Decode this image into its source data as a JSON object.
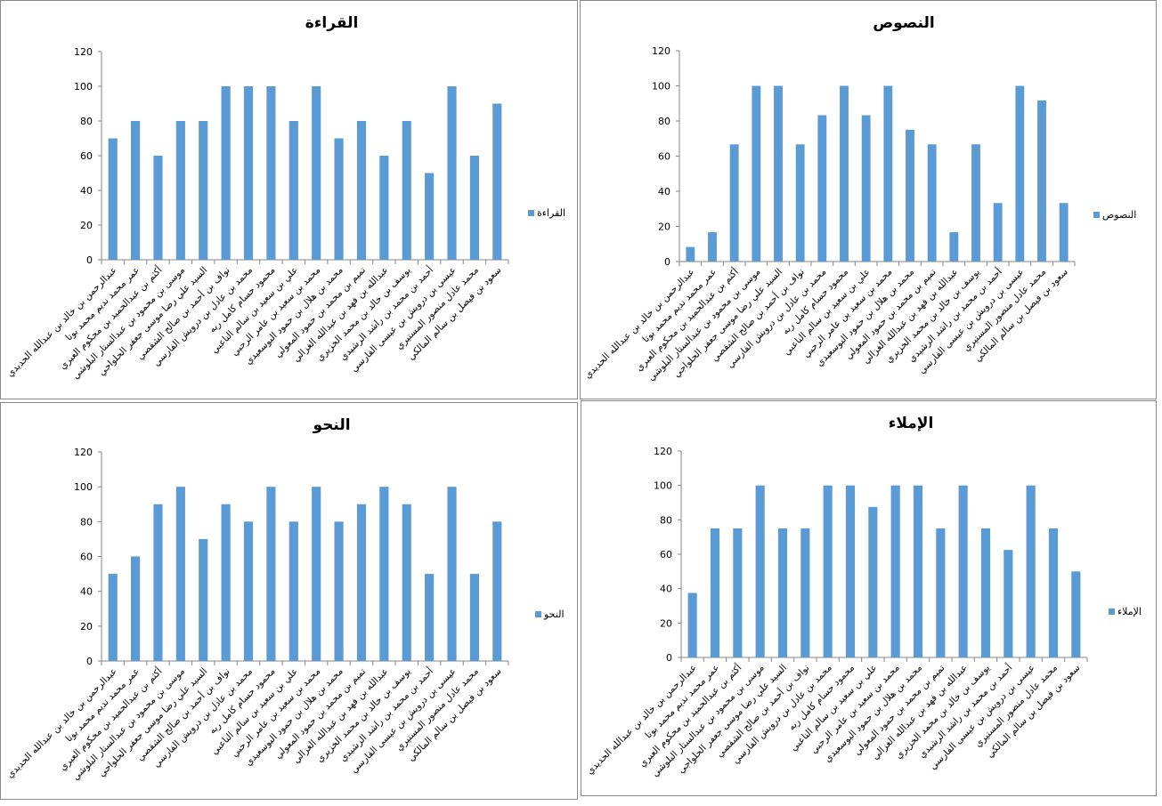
{
  "colors": {
    "bar": "#5B9BD5",
    "axis": "#868686"
  },
  "students": [
    "عبدالرحمن بن خالد بن عبدالله الحديدي",
    "عمر محمد نديم محمد بوتا",
    "أكثم بن عبدالحميد بن محكوم العبري",
    "موسى بن محمود بن عبدالستار البلوشي",
    "السيد علي رضا موسى جعفر الحلواجي",
    "نواف بن أحمد بن صالح الشقصي",
    "محمد بن عادل بن درويش الفارسي",
    "محمود حسام كامل ربه",
    "علي بن سعيد بن سالم الناعبي",
    "محمد بن سعيد بن عامر الرحبي",
    "محمد بن هلال بن حمود البوسعيدي",
    "تميم بن محمد بن حمود المعولي",
    "عبدالله بن فهد بن عبدالله الغزالي",
    "يوسف بن خالد بن محمد الخزيري",
    "أحمد بن محمد بن راشد الرشيدي",
    "عيسى بن درويش بن عيسى الفارسي",
    "محمد عادل منصور المستيري",
    "سعود بن فيصل بن سالم المالكي"
  ],
  "chart_data": [
    {
      "type": "bar",
      "title": "القراءة",
      "legend": "القراءة",
      "legend_position": "right",
      "ylim": [
        0,
        120
      ],
      "yticks": [
        "0",
        "20",
        "40",
        "60",
        "80",
        "100",
        "120"
      ],
      "values": [
        70,
        80,
        60,
        80,
        80,
        100,
        100,
        100,
        80,
        100,
        70,
        80,
        60,
        80,
        50,
        100,
        60,
        90
      ]
    },
    {
      "type": "bar",
      "title": "النصوص",
      "legend": "النصوص",
      "legend_position": "right",
      "ylim": [
        0,
        120
      ],
      "yticks": [
        "0",
        "20",
        "40",
        "60",
        "80",
        "100",
        "120"
      ],
      "values": [
        8.3,
        16.7,
        66.7,
        100,
        100,
        66.7,
        83.3,
        100,
        83.3,
        100,
        75,
        66.7,
        16.7,
        66.7,
        33.3,
        100,
        91.7,
        33.3
      ]
    },
    {
      "type": "bar",
      "title": "النحو",
      "legend": "النحو",
      "legend_position": "right",
      "ylim": [
        0,
        120
      ],
      "yticks": [
        "0",
        "20",
        "40",
        "60",
        "80",
        "100",
        "120"
      ],
      "values": [
        50,
        60,
        90,
        100,
        70,
        90,
        80,
        100,
        80,
        100,
        80,
        90,
        100,
        90,
        50,
        100,
        50,
        80
      ]
    },
    {
      "type": "bar",
      "title": "الإملاء",
      "legend": "الإملاء",
      "legend_position": "right",
      "ylim": [
        0,
        120
      ],
      "yticks": [
        "0",
        "20",
        "40",
        "60",
        "80",
        "100",
        "120"
      ],
      "values": [
        37.5,
        75,
        75,
        100,
        75,
        75,
        100,
        100,
        87.5,
        100,
        100,
        75,
        100,
        75,
        62.5,
        100,
        75,
        50
      ]
    }
  ]
}
